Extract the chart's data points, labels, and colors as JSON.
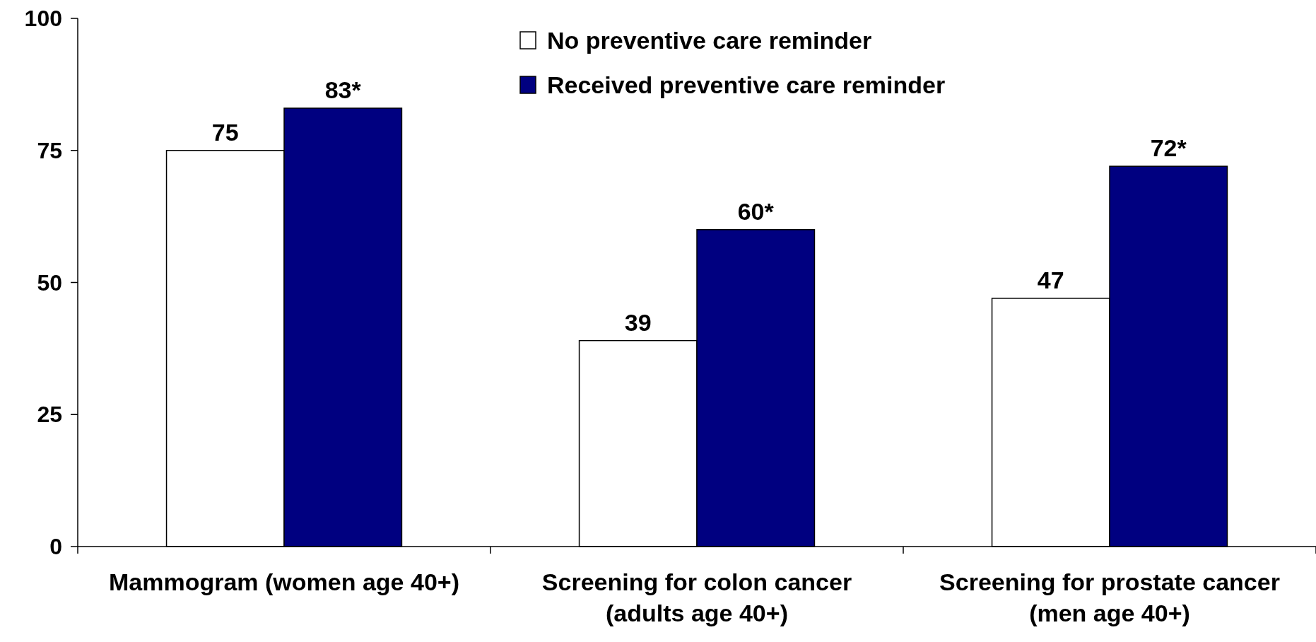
{
  "chart_data": {
    "type": "bar",
    "categories": [
      "Mammogram (women age 40+)",
      "Screening for colon cancer (adults age 40+)",
      "Screening for prostate cancer (men age 40+)"
    ],
    "series": [
      {
        "name": "No preventive care reminder",
        "color": "#ffffff",
        "values": [
          75,
          39,
          47
        ],
        "value_labels": [
          "75",
          "39",
          "47"
        ]
      },
      {
        "name": "Received preventive care reminder",
        "color": "#000080",
        "values": [
          83,
          60,
          72
        ],
        "value_labels": [
          "83*",
          "60*",
          "72*"
        ]
      }
    ],
    "ylim": [
      0,
      100
    ],
    "yticks": [
      0,
      25,
      50,
      75,
      100
    ],
    "grid": false,
    "legend": "top"
  }
}
